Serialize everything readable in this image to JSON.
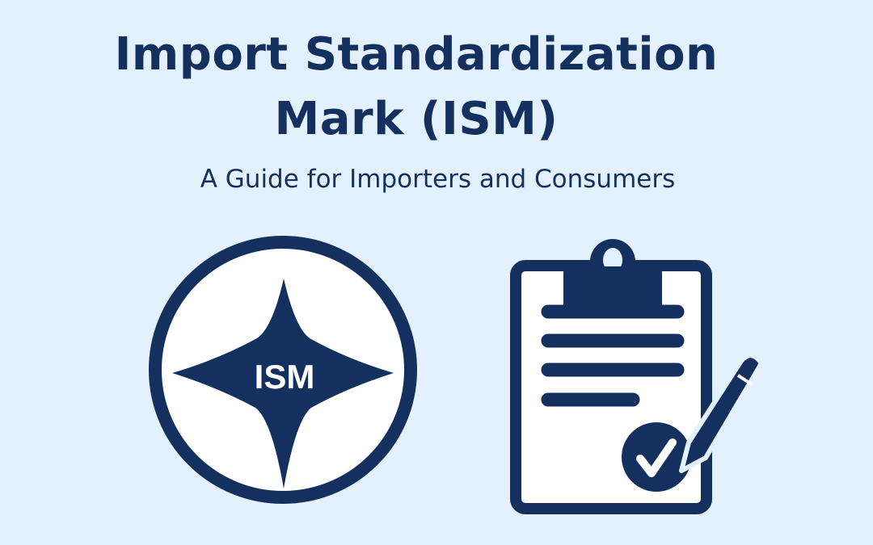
{
  "header": {
    "title_line1": "Import Standardization",
    "title_line2": "Mark (ISM)",
    "subtitle": "A Guide for Importers and Consumers"
  },
  "emblem": {
    "text": "ISM",
    "icon": "star-emblem-icon"
  },
  "clipboard": {
    "icon": "clipboard-checklist-icon",
    "check_icon": "check-circle-icon",
    "pen_icon": "pencil-icon"
  },
  "colors": {
    "background": "#e2f1fd",
    "navy": "#14305f",
    "white": "#ffffff"
  }
}
